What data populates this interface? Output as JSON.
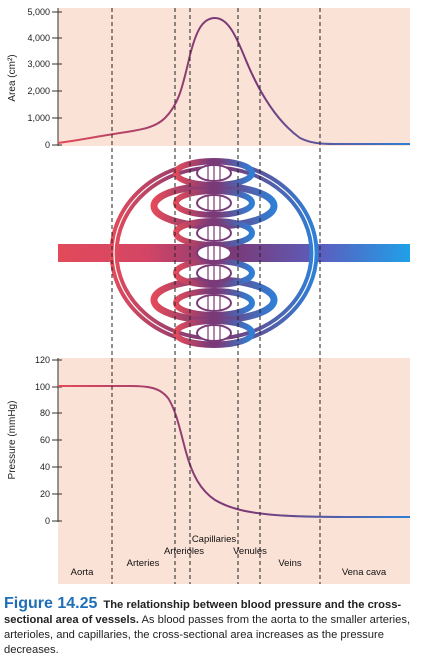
{
  "colors": {
    "panel_bg": "#fbe2d6",
    "arterial": "#e24a5a",
    "venous": "#2f7fd6",
    "capillary": "#7a3a78",
    "figure_label": "#1f6fb8"
  },
  "area_chart": {
    "ylabel": "Area (cm²)",
    "ytick_labels": [
      "5,000",
      "4,000",
      "3,000",
      "2,000",
      "1,000",
      "0"
    ],
    "ytick_values": [
      5000,
      4000,
      3000,
      2000,
      1000,
      0
    ]
  },
  "pressure_chart": {
    "ylabel": "Pressure (mmHg)",
    "ytick_labels": [
      "120",
      "100",
      "80",
      "60",
      "40",
      "20",
      "0"
    ],
    "ytick_values": [
      120,
      100,
      80,
      60,
      40,
      20,
      0
    ]
  },
  "segments": {
    "aorta": "Aorta",
    "arteries": "Arteries",
    "arterioles": "Arterioles",
    "capillaries": "Capillaries",
    "venules": "Venules",
    "veins": "Veins",
    "vena_cava": "Vena cava"
  },
  "chart_data": [
    {
      "type": "line",
      "ylabel": "Area (cm²)",
      "ylim": [
        0,
        5000
      ],
      "grid": false,
      "x": [
        "Aorta",
        "Arteries",
        "Arterioles",
        "Capillaries",
        "Venules",
        "Veins",
        "Vena cava"
      ],
      "series": [
        {
          "values": [
            150,
            500,
            1300,
            4600,
            3200,
            300,
            80
          ]
        }
      ]
    },
    {
      "type": "line",
      "ylabel": "Pressure (mmHg)",
      "ylim": [
        0,
        120
      ],
      "grid": false,
      "x": [
        "Aorta",
        "Arteries",
        "Arterioles",
        "Capillaries",
        "Venules",
        "Veins",
        "Vena cava"
      ],
      "series": [
        {
          "values": [
            100,
            100,
            80,
            20,
            10,
            3,
            2
          ]
        }
      ]
    }
  ],
  "caption": {
    "figure_number": "Figure 14.25",
    "title": "The relationship between blood pressure and the cross-sectional area of vessels.",
    "body": "As blood passes from the aorta to the smaller arteries, arterioles, and capillaries, the cross-sectional area increases as the pressure decreases."
  }
}
